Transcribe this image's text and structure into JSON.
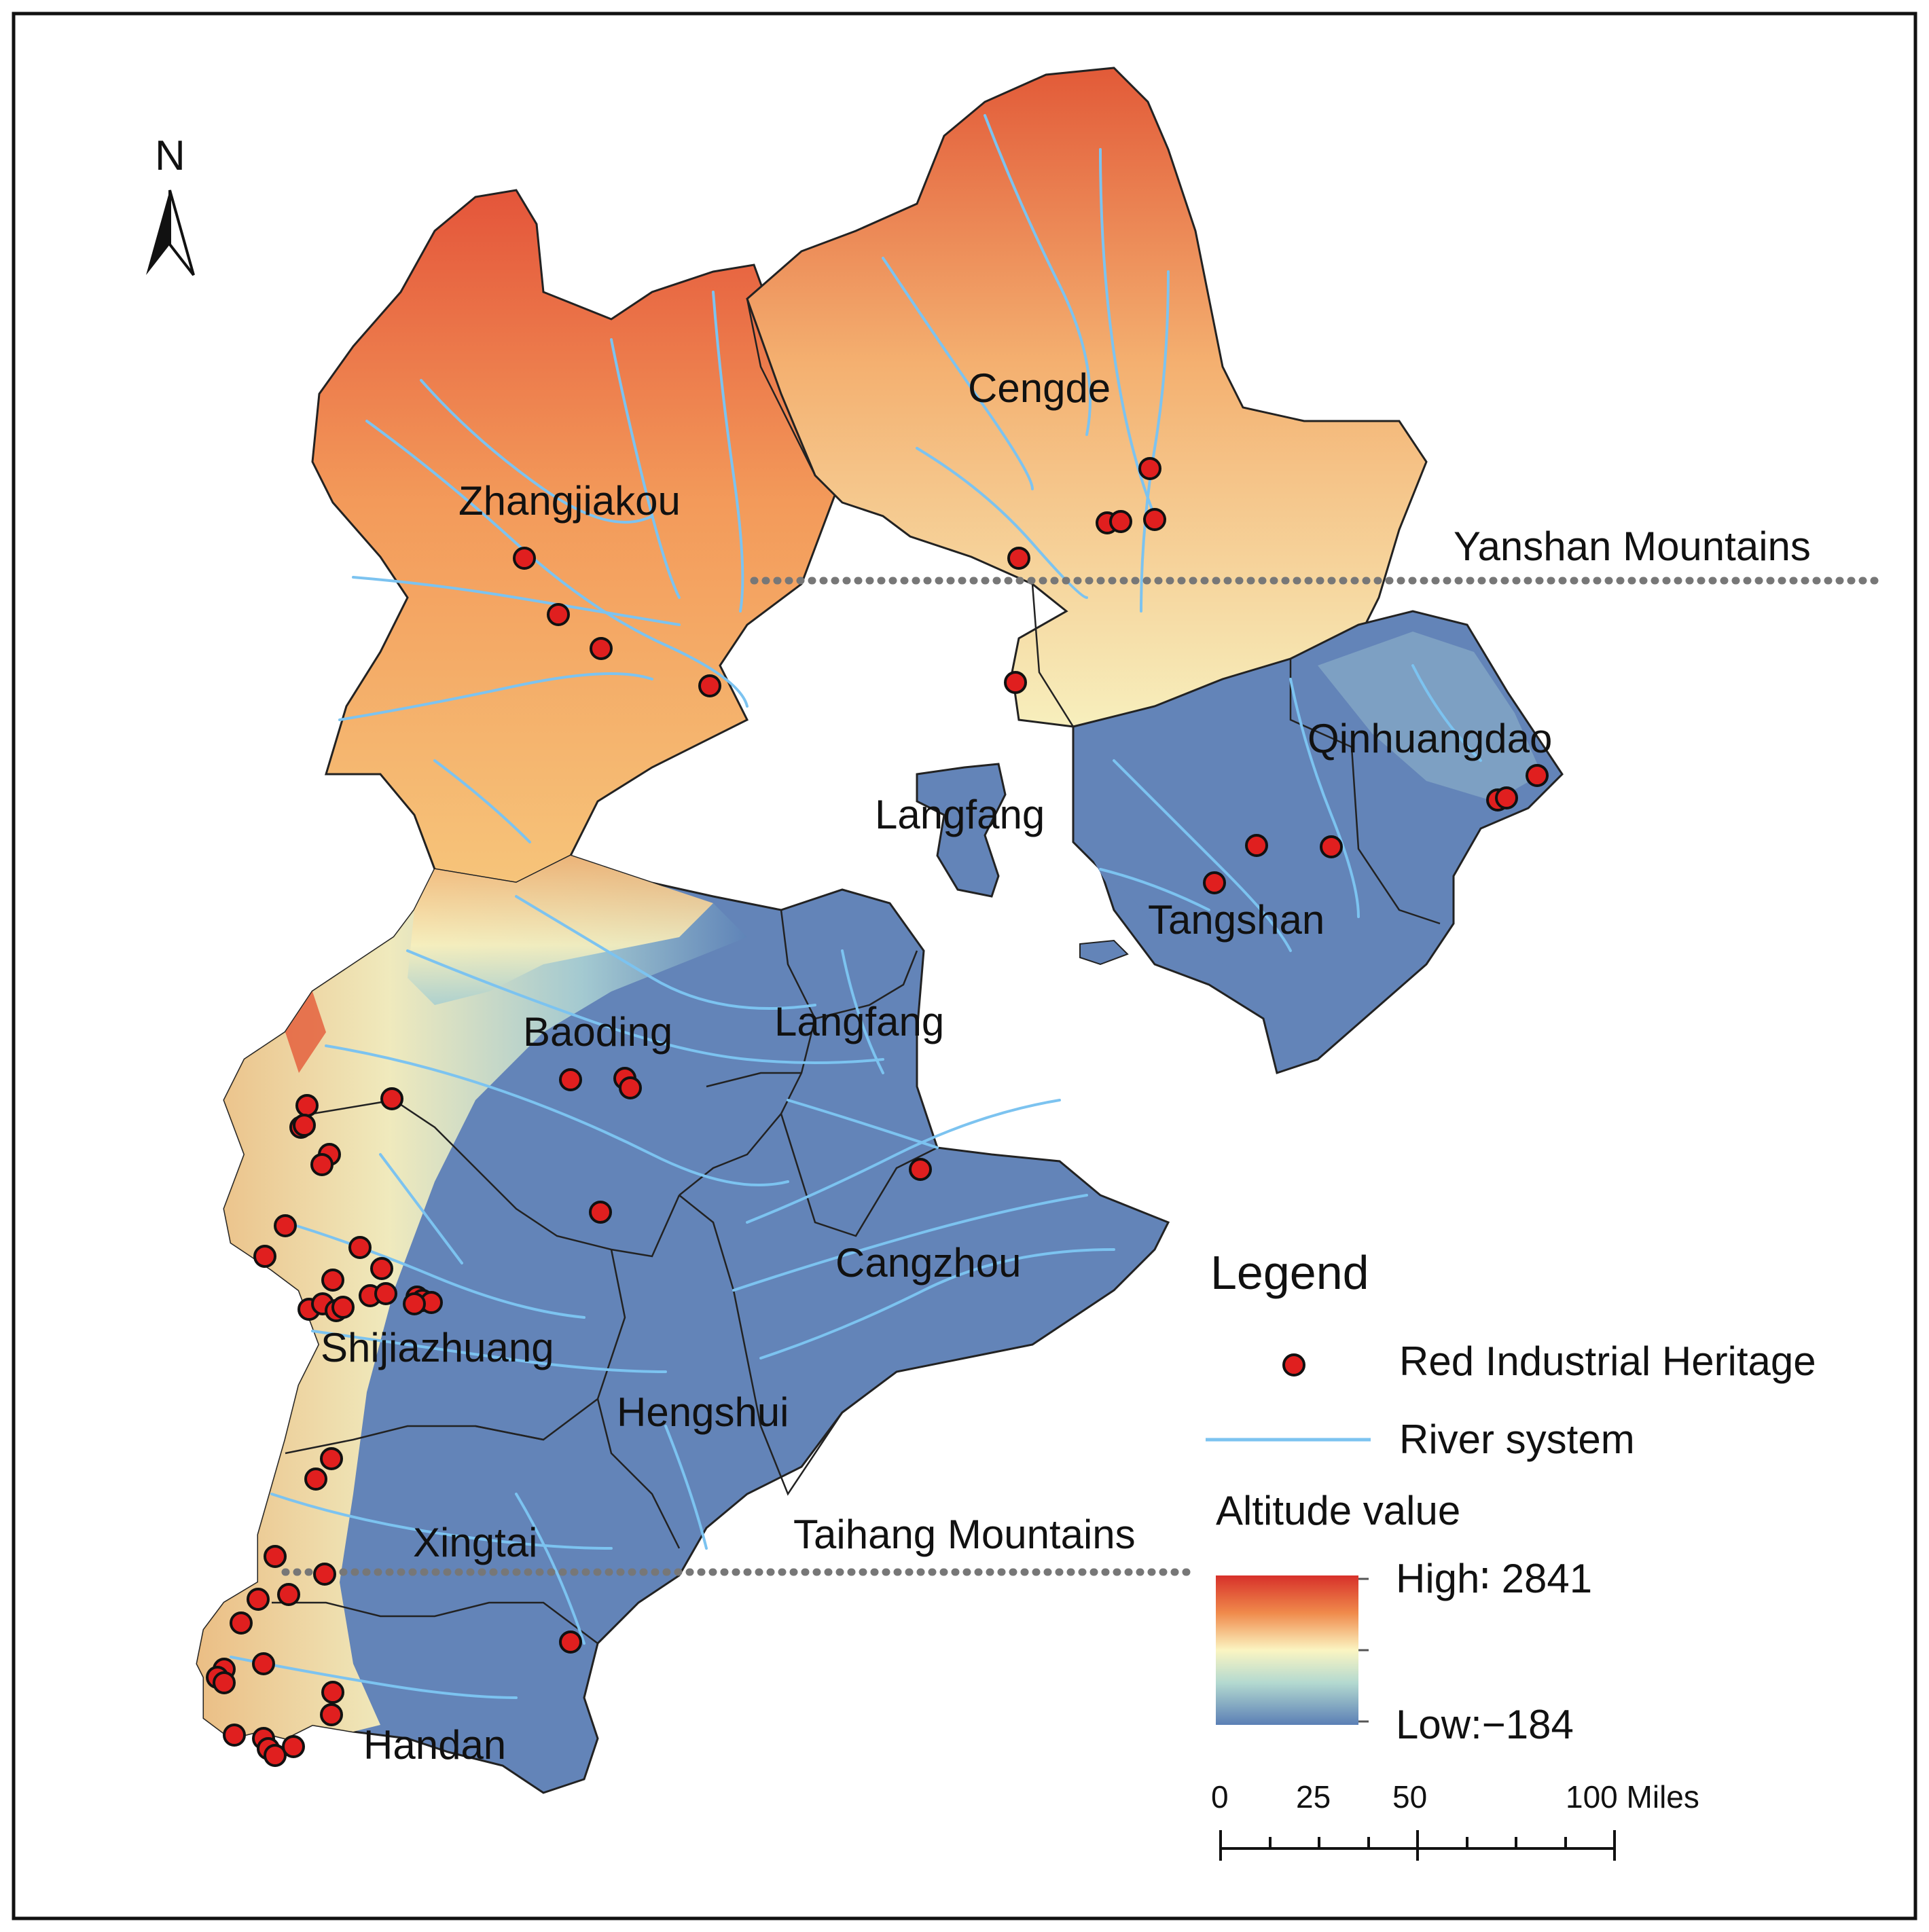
{
  "north_arrow": {
    "label": "N"
  },
  "cities": [
    {
      "name": "Zhangjiakou"
    },
    {
      "name": "Cengde"
    },
    {
      "name": "Qinhuangdao"
    },
    {
      "name": "Langfang"
    },
    {
      "name": "Tangshan"
    },
    {
      "name": "Baoding"
    },
    {
      "name": "Langfang"
    },
    {
      "name": "Cangzhou"
    },
    {
      "name": "Shijiazhuang"
    },
    {
      "name": "Hengshui"
    },
    {
      "name": "Xingtai"
    },
    {
      "name": "Handan"
    }
  ],
  "mountains": [
    {
      "name": "Yanshan Mountains"
    },
    {
      "name": "Taihang Mountains"
    }
  ],
  "legend": {
    "title": "Legend",
    "heritage_label": "Red Industrial Heritage",
    "river_label": "River system",
    "altitude_title": "Altitude value",
    "high_label": "High∶ 2841",
    "low_label": "Low:−184",
    "altitude_high": 2841,
    "altitude_low": -184
  },
  "scale_bar": {
    "ticks": [
      "0",
      "25",
      "50",
      "100 Miles"
    ]
  },
  "colors": {
    "high": "#d7302a",
    "mid_high": "#f4a460",
    "mid": "#fbf5c2",
    "mid_low": "#b3d9d0",
    "low": "#5b7fb5",
    "river": "#7cc3f0",
    "heritage_fill": "#e01f1f",
    "heritage_stroke": "#111111",
    "boundary": "#222222"
  }
}
